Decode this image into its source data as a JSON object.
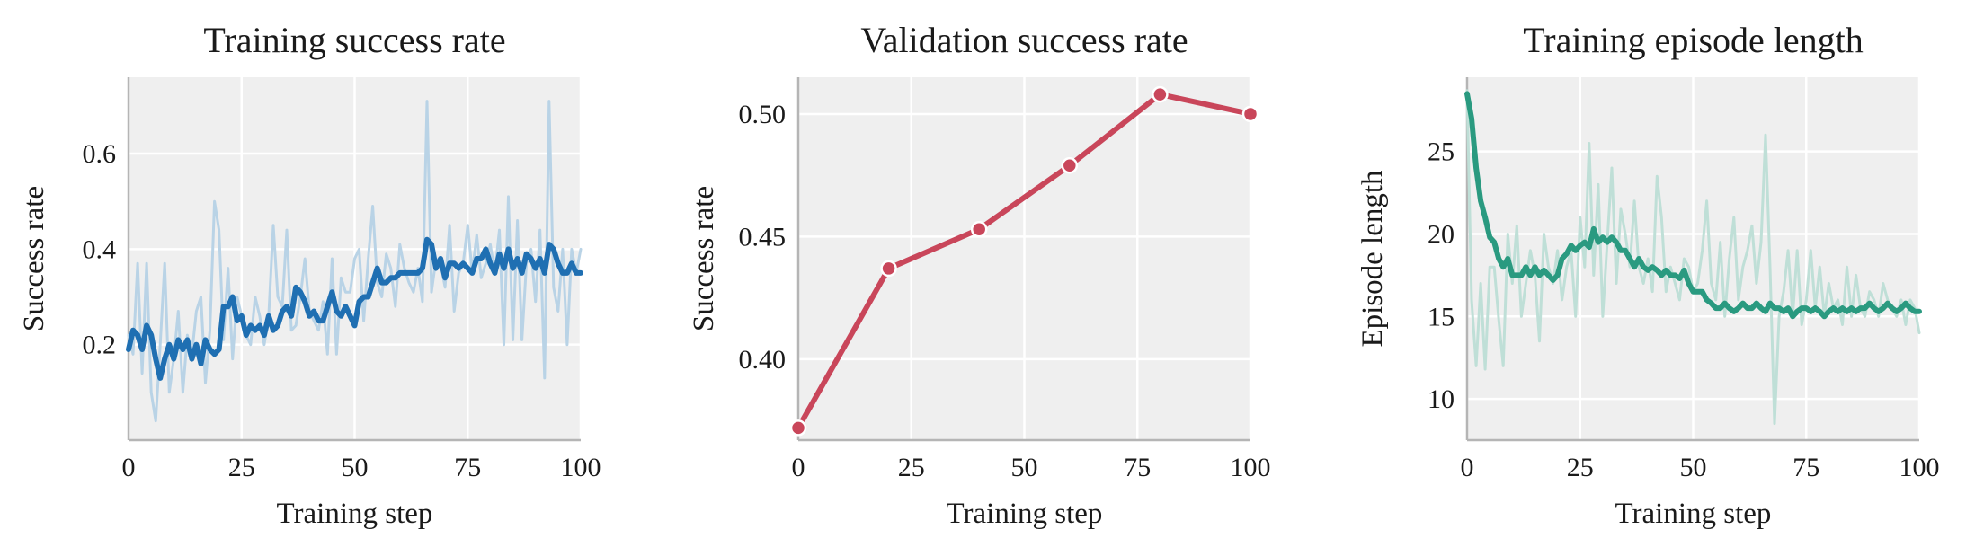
{
  "chart_data": [
    {
      "type": "line",
      "title": "Training success rate",
      "xlabel": "Training step",
      "ylabel": "Success rate",
      "xlim": [
        0,
        100
      ],
      "ylim": [
        0,
        0.76
      ],
      "xticks": [
        0,
        25,
        50,
        75,
        100
      ],
      "yticks": [
        0.2,
        0.4,
        0.6
      ],
      "ytick_labels": [
        "0.2",
        "0.4",
        "0.6"
      ],
      "grid": true,
      "colors": {
        "raw": "#b9d3e6",
        "smooth": "#1f6fb2"
      },
      "series": [
        {
          "role": "raw",
          "x": [
            0,
            1,
            2,
            3,
            4,
            5,
            6,
            7,
            8,
            9,
            10,
            11,
            12,
            13,
            14,
            15,
            16,
            17,
            18,
            19,
            20,
            21,
            22,
            23,
            24,
            25,
            26,
            27,
            28,
            29,
            30,
            31,
            32,
            33,
            34,
            35,
            36,
            37,
            38,
            39,
            40,
            41,
            42,
            43,
            44,
            45,
            46,
            47,
            48,
            49,
            50,
            51,
            52,
            53,
            54,
            55,
            56,
            57,
            58,
            59,
            60,
            61,
            62,
            63,
            64,
            65,
            66,
            67,
            68,
            69,
            70,
            71,
            72,
            73,
            74,
            75,
            76,
            77,
            78,
            79,
            80,
            81,
            82,
            83,
            84,
            85,
            86,
            87,
            88,
            89,
            90,
            91,
            92,
            93,
            94,
            95,
            96,
            97,
            98,
            99,
            100
          ],
          "y": [
            0.22,
            0.18,
            0.37,
            0.14,
            0.37,
            0.1,
            0.04,
            0.2,
            0.37,
            0.1,
            0.17,
            0.27,
            0.1,
            0.22,
            0.18,
            0.27,
            0.3,
            0.12,
            0.23,
            0.5,
            0.44,
            0.21,
            0.36,
            0.17,
            0.3,
            0.26,
            0.22,
            0.2,
            0.3,
            0.26,
            0.2,
            0.26,
            0.45,
            0.3,
            0.28,
            0.44,
            0.23,
            0.24,
            0.3,
            0.38,
            0.27,
            0.25,
            0.23,
            0.29,
            0.18,
            0.38,
            0.18,
            0.34,
            0.31,
            0.31,
            0.38,
            0.4,
            0.25,
            0.38,
            0.49,
            0.33,
            0.3,
            0.39,
            0.36,
            0.28,
            0.41,
            0.36,
            0.33,
            0.31,
            0.36,
            0.29,
            0.71,
            0.31,
            0.38,
            0.37,
            0.32,
            0.45,
            0.27,
            0.35,
            0.37,
            0.45,
            0.35,
            0.43,
            0.34,
            0.37,
            0.41,
            0.35,
            0.44,
            0.2,
            0.51,
            0.21,
            0.46,
            0.21,
            0.37,
            0.4,
            0.29,
            0.44,
            0.13,
            0.71,
            0.32,
            0.27,
            0.4,
            0.2,
            0.4,
            0.35,
            0.4
          ]
        },
        {
          "role": "smoothed",
          "x": [
            0,
            1,
            2,
            3,
            4,
            5,
            6,
            7,
            8,
            9,
            10,
            11,
            12,
            13,
            14,
            15,
            16,
            17,
            18,
            19,
            20,
            21,
            22,
            23,
            24,
            25,
            26,
            27,
            28,
            29,
            30,
            31,
            32,
            33,
            34,
            35,
            36,
            37,
            38,
            39,
            40,
            41,
            42,
            43,
            44,
            45,
            46,
            47,
            48,
            49,
            50,
            51,
            52,
            53,
            54,
            55,
            56,
            57,
            58,
            59,
            60,
            61,
            62,
            63,
            64,
            65,
            66,
            67,
            68,
            69,
            70,
            71,
            72,
            73,
            74,
            75,
            76,
            77,
            78,
            79,
            80,
            81,
            82,
            83,
            84,
            85,
            86,
            87,
            88,
            89,
            90,
            91,
            92,
            93,
            94,
            95,
            96,
            97,
            98,
            99,
            100
          ],
          "y": [
            0.19,
            0.23,
            0.22,
            0.19,
            0.24,
            0.22,
            0.17,
            0.13,
            0.17,
            0.2,
            0.17,
            0.21,
            0.19,
            0.21,
            0.17,
            0.2,
            0.16,
            0.21,
            0.19,
            0.18,
            0.19,
            0.28,
            0.28,
            0.3,
            0.25,
            0.26,
            0.22,
            0.24,
            0.23,
            0.24,
            0.22,
            0.26,
            0.23,
            0.24,
            0.27,
            0.28,
            0.26,
            0.32,
            0.31,
            0.29,
            0.26,
            0.27,
            0.25,
            0.25,
            0.28,
            0.31,
            0.27,
            0.26,
            0.28,
            0.26,
            0.24,
            0.29,
            0.3,
            0.3,
            0.33,
            0.36,
            0.33,
            0.33,
            0.34,
            0.34,
            0.35,
            0.35,
            0.35,
            0.35,
            0.35,
            0.36,
            0.42,
            0.41,
            0.36,
            0.38,
            0.34,
            0.37,
            0.37,
            0.36,
            0.37,
            0.36,
            0.35,
            0.38,
            0.38,
            0.4,
            0.37,
            0.35,
            0.39,
            0.36,
            0.4,
            0.36,
            0.38,
            0.35,
            0.39,
            0.38,
            0.36,
            0.38,
            0.35,
            0.41,
            0.4,
            0.37,
            0.35,
            0.35,
            0.37,
            0.35,
            0.35
          ]
        }
      ]
    },
    {
      "type": "line",
      "title": "Validation success rate",
      "xlabel": "Training step",
      "ylabel": "Success rate",
      "xlim": [
        0,
        100
      ],
      "ylim": [
        0.367,
        0.515
      ],
      "xticks": [
        0,
        25,
        50,
        75,
        100
      ],
      "yticks": [
        0.4,
        0.45,
        0.5
      ],
      "ytick_labels": [
        "0.40",
        "0.45",
        "0.50"
      ],
      "grid": true,
      "colors": {
        "line": "#c9465a"
      },
      "series": [
        {
          "x": [
            0,
            20,
            40,
            60,
            80,
            100
          ],
          "y": [
            0.372,
            0.437,
            0.453,
            0.479,
            0.508,
            0.5
          ]
        }
      ]
    },
    {
      "type": "line",
      "title": "Training episode length",
      "xlabel": "Training step",
      "ylabel": "Episode length",
      "xlim": [
        0,
        100
      ],
      "ylim": [
        7.5,
        29.5
      ],
      "xticks": [
        0,
        25,
        50,
        75,
        100
      ],
      "yticks": [
        10,
        15,
        20,
        25
      ],
      "ytick_labels": [
        "10",
        "15",
        "20",
        "25"
      ],
      "grid": true,
      "colors": {
        "raw": "#bfdfd7",
        "smooth": "#2a9a80"
      },
      "series": [
        {
          "role": "raw",
          "x": [
            0,
            1,
            2,
            3,
            4,
            5,
            6,
            7,
            8,
            9,
            10,
            11,
            12,
            13,
            14,
            15,
            16,
            17,
            18,
            19,
            20,
            21,
            22,
            23,
            24,
            25,
            26,
            27,
            28,
            29,
            30,
            31,
            32,
            33,
            34,
            35,
            36,
            37,
            38,
            39,
            40,
            41,
            42,
            43,
            44,
            45,
            46,
            47,
            48,
            49,
            50,
            51,
            52,
            53,
            54,
            55,
            56,
            57,
            58,
            59,
            60,
            61,
            62,
            63,
            64,
            65,
            66,
            67,
            68,
            69,
            70,
            71,
            72,
            73,
            74,
            75,
            76,
            77,
            78,
            79,
            80,
            81,
            82,
            83,
            84,
            85,
            86,
            87,
            88,
            89,
            90,
            91,
            92,
            93,
            94,
            95,
            96,
            97,
            98,
            99,
            100
          ],
          "y": [
            28.7,
            16.0,
            12.0,
            17.0,
            11.8,
            18.0,
            18.0,
            14.8,
            12.0,
            20.0,
            17.0,
            20.5,
            15.0,
            17.0,
            19.0,
            17.5,
            13.5,
            20.0,
            18.0,
            17.0,
            19.0,
            16.0,
            18.0,
            19.0,
            15.0,
            21.0,
            18.0,
            25.5,
            17.5,
            23.0,
            15.0,
            19.5,
            24.0,
            17.0,
            21.5,
            20.0,
            18.0,
            22.0,
            18.0,
            17.0,
            18.5,
            16.5,
            23.5,
            21.0,
            16.5,
            18.0,
            17.0,
            16.0,
            18.5,
            18.0,
            16.5,
            17.0,
            19.0,
            22.0,
            17.0,
            16.0,
            19.5,
            15.0,
            18.5,
            21.0,
            16.0,
            18.0,
            19.0,
            20.5,
            17.0,
            19.5,
            26.0,
            18.0,
            8.5,
            15.0,
            16.5,
            19.0,
            15.0,
            19.0,
            14.5,
            16.0,
            19.0,
            15.5,
            18.0,
            15.0,
            17.0,
            15.5,
            16.0,
            14.5,
            18.0,
            15.0,
            17.5,
            15.5,
            15.0,
            16.5,
            16.0,
            15.0,
            17.0,
            16.0,
            15.5,
            15.0,
            16.0,
            14.5,
            16.0,
            15.5,
            14.0
          ]
        },
        {
          "role": "smoothed",
          "x": [
            0,
            1,
            2,
            3,
            4,
            5,
            6,
            7,
            8,
            9,
            10,
            11,
            12,
            13,
            14,
            15,
            16,
            17,
            18,
            19,
            20,
            21,
            22,
            23,
            24,
            25,
            26,
            27,
            28,
            29,
            30,
            31,
            32,
            33,
            34,
            35,
            36,
            37,
            38,
            39,
            40,
            41,
            42,
            43,
            44,
            45,
            46,
            47,
            48,
            49,
            50,
            51,
            52,
            53,
            54,
            55,
            56,
            57,
            58,
            59,
            60,
            61,
            62,
            63,
            64,
            65,
            66,
            67,
            68,
            69,
            70,
            71,
            72,
            73,
            74,
            75,
            76,
            77,
            78,
            79,
            80,
            81,
            82,
            83,
            84,
            85,
            86,
            87,
            88,
            89,
            90,
            91,
            92,
            93,
            94,
            95,
            96,
            97,
            98,
            99,
            100
          ],
          "y": [
            28.5,
            27.0,
            24.0,
            22.0,
            21.0,
            19.8,
            19.5,
            18.5,
            18.0,
            18.5,
            17.5,
            17.5,
            17.5,
            18.0,
            17.5,
            18.0,
            17.5,
            17.8,
            17.5,
            17.2,
            17.5,
            18.5,
            18.8,
            19.3,
            19.0,
            19.3,
            19.5,
            19.2,
            20.3,
            19.5,
            19.8,
            19.5,
            19.8,
            19.5,
            19.0,
            19.0,
            18.5,
            18.0,
            18.5,
            18.0,
            17.8,
            18.0,
            17.8,
            17.5,
            17.8,
            17.5,
            17.5,
            17.3,
            17.8,
            17.0,
            16.5,
            16.5,
            16.5,
            16.0,
            15.8,
            15.5,
            15.5,
            15.8,
            15.5,
            15.3,
            15.5,
            15.8,
            15.5,
            15.5,
            15.8,
            15.5,
            15.3,
            15.8,
            15.5,
            15.5,
            15.3,
            15.5,
            15.0,
            15.3,
            15.5,
            15.5,
            15.3,
            15.5,
            15.3,
            15.0,
            15.3,
            15.5,
            15.3,
            15.5,
            15.3,
            15.5,
            15.3,
            15.5,
            15.5,
            15.8,
            15.5,
            15.3,
            15.5,
            15.8,
            15.5,
            15.3,
            15.5,
            15.8,
            15.5,
            15.3,
            15.3
          ]
        }
      ]
    }
  ]
}
